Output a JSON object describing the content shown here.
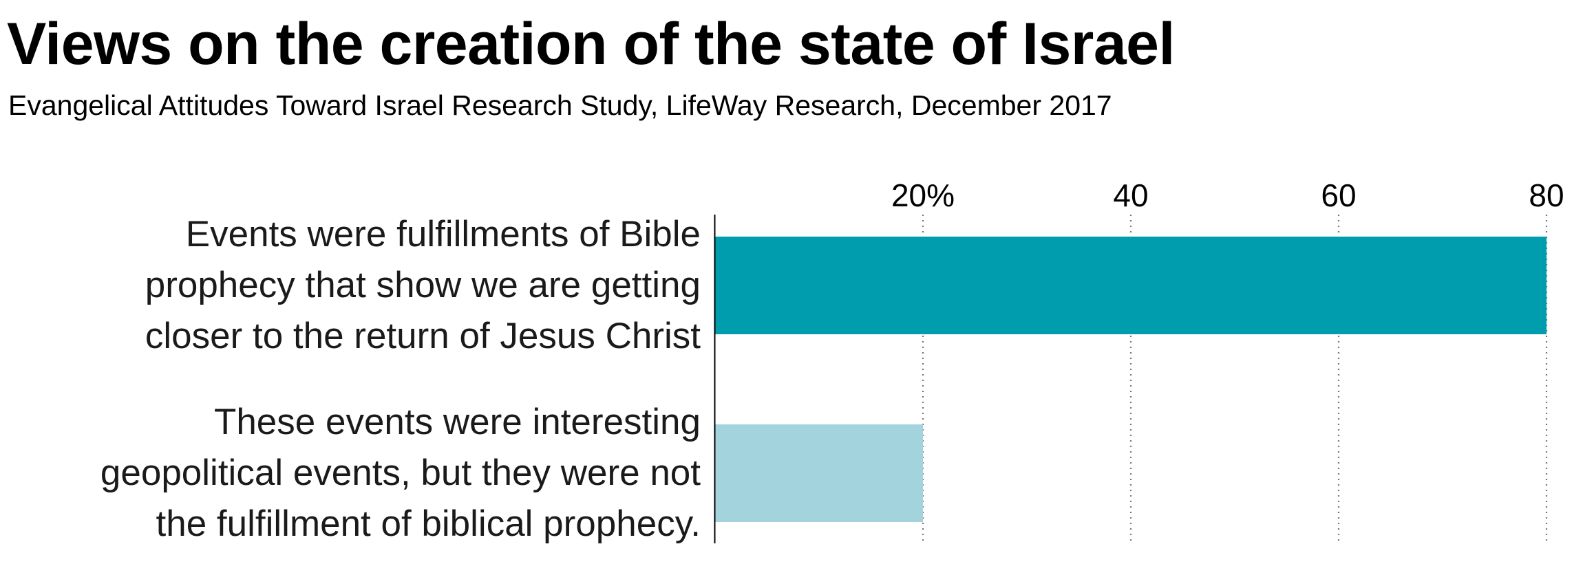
{
  "title": "Views on the creation of the state of Israel",
  "subtitle": "Evangelical Attitudes Toward Israel Research Study, LifeWay Research, December 2017",
  "chart_data": {
    "type": "bar",
    "orientation": "horizontal",
    "title": "Views on the creation of the state of Israel",
    "subtitle": "Evangelical Attitudes Toward Israel Research Study, LifeWay Research, December 2017",
    "categories": [
      "Events were fulfillments of Bible prophecy that show we are getting closer to the return of Jesus Christ",
      "These events were interesting geopolitical events, but they were not the fulfillment of biblical prophecy."
    ],
    "category_lines": [
      [
        "Events were fulfillments of Bible",
        "prophecy that show we are getting",
        "closer to the return of Jesus Christ"
      ],
      [
        "These events were interesting",
        "geopolitical events, but they were not",
        "the fulfillment of biblical prophecy."
      ]
    ],
    "values": [
      80,
      20
    ],
    "bar_colors": [
      "#009daf",
      "#a3d4de"
    ],
    "xlim": [
      0,
      80
    ],
    "ticks": [
      20,
      40,
      60,
      80
    ],
    "tick_labels": [
      "20%",
      "40",
      "60",
      "80"
    ],
    "axis_position": "top",
    "grid": "vertical dotted",
    "xlabel": "",
    "ylabel": ""
  }
}
